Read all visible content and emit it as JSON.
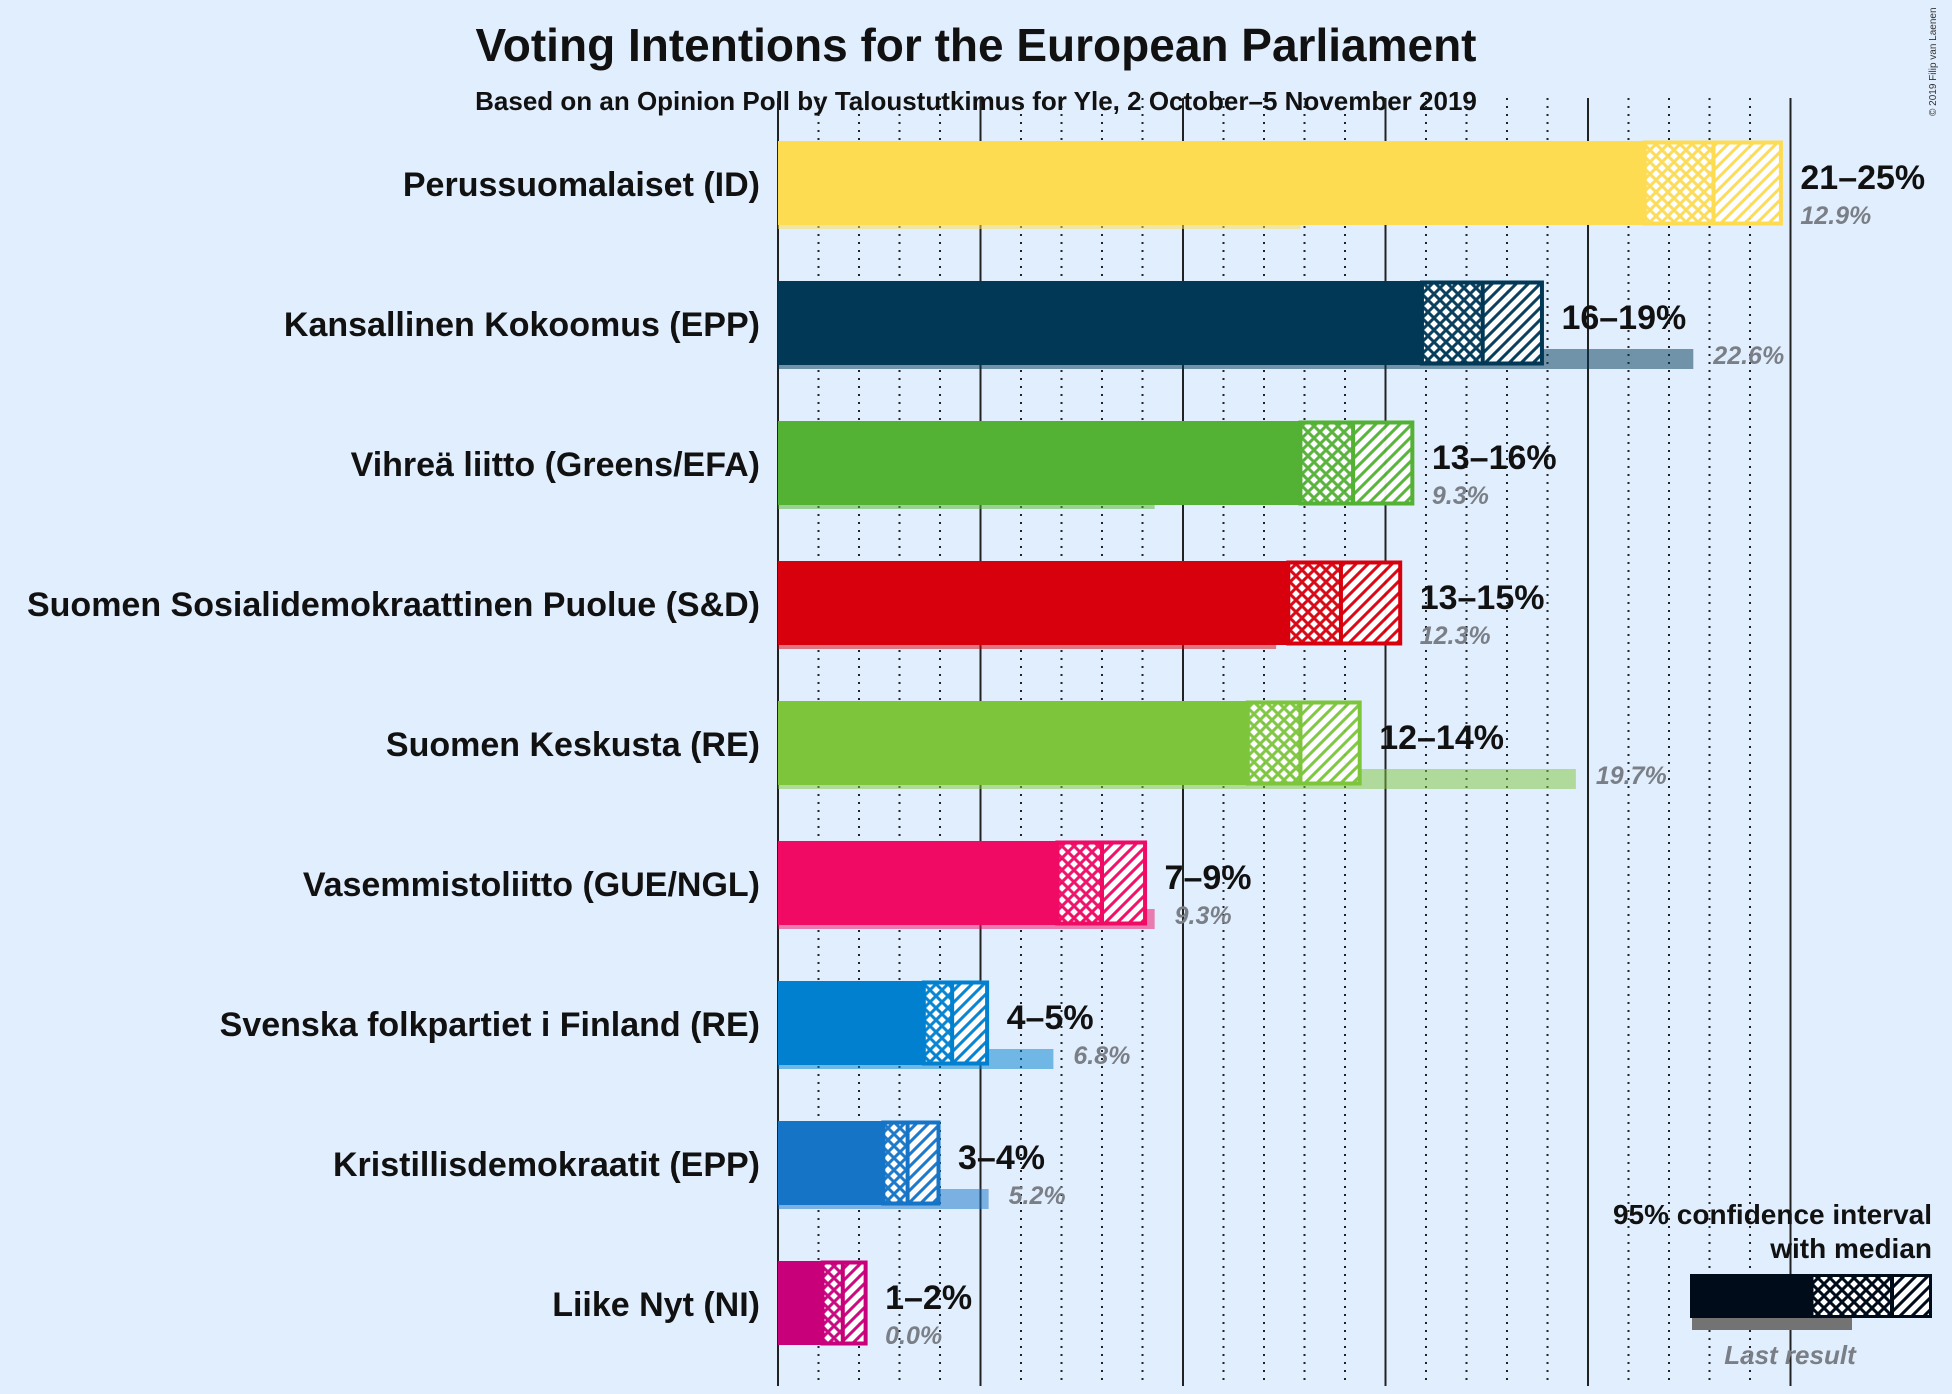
{
  "title": "Voting Intentions for the European Parliament",
  "subtitle": "Based on an Opinion Poll by Taloustutkimus for Yle, 2 October–5 November 2019",
  "copyright": "© 2019 Filip van Laenen",
  "chart_data": {
    "type": "bar",
    "orientation": "horizontal",
    "xlim": [
      0,
      25
    ],
    "unit": "%",
    "categories": [
      "Perussuomalaiset (ID)",
      "Kansallinen Kokoomus (EPP)",
      "Vihreä liitto (Greens/EFA)",
      "Suomen Sosialidemokraattinen Puolue (S&D)",
      "Suomen Keskusta (RE)",
      "Vasemmistoliitto (GUE/NGL)",
      "Svenska folkpartiet i Finland (RE)",
      "Kristillisdemokraatit (EPP)",
      "Liike Nyt (NI)"
    ],
    "parties": [
      {
        "name": "Perussuomalaiset (ID)",
        "color": "#fddc52",
        "ci_low": 21.4,
        "median": 23.1,
        "ci_high": 24.8,
        "range_label": "21–25%",
        "last_result": 12.9,
        "last_label": "12.9%"
      },
      {
        "name": "Kansallinen Kokoomus (EPP)",
        "color": "#003856",
        "ci_low": 15.9,
        "median": 17.4,
        "ci_high": 18.9,
        "range_label": "16–19%",
        "last_result": 22.6,
        "last_label": "22.6%"
      },
      {
        "name": "Vihreä liitto (Greens/EFA)",
        "color": "#53b134",
        "ci_low": 12.9,
        "median": 14.2,
        "ci_high": 15.7,
        "range_label": "13–16%",
        "last_result": 9.3,
        "last_label": "9.3%"
      },
      {
        "name": "Suomen Sosialidemokraattinen Puolue (S&D)",
        "color": "#d8000c",
        "ci_low": 12.6,
        "median": 13.9,
        "ci_high": 15.4,
        "range_label": "13–15%",
        "last_result": 12.3,
        "last_label": "12.3%"
      },
      {
        "name": "Suomen Keskusta (RE)",
        "color": "#7dc63c",
        "ci_low": 11.6,
        "median": 12.9,
        "ci_high": 14.4,
        "range_label": "12–14%",
        "last_result": 19.7,
        "last_label": "19.7%"
      },
      {
        "name": "Vasemmistoliitto (GUE/NGL)",
        "color": "#f00a64",
        "ci_low": 6.9,
        "median": 8.0,
        "ci_high": 9.1,
        "range_label": "7–9%",
        "last_result": 9.3,
        "last_label": "9.3%"
      },
      {
        "name": "Svenska folkpartiet i Finland (RE)",
        "color": "#0080cf",
        "ci_low": 3.6,
        "median": 4.3,
        "ci_high": 5.2,
        "range_label": "4–5%",
        "last_result": 6.8,
        "last_label": "6.8%"
      },
      {
        "name": "Kristillisdemokraatit (EPP)",
        "color": "#1674c7",
        "ci_low": 2.6,
        "median": 3.2,
        "ci_high": 4.0,
        "range_label": "3–4%",
        "last_result": 5.2,
        "last_label": "5.2%"
      },
      {
        "name": "Liike Nyt (NI)",
        "color": "#c8007a",
        "ci_low": 1.1,
        "median": 1.6,
        "ci_high": 2.2,
        "range_label": "1–2%",
        "last_result": 0.0,
        "last_label": "0.0%"
      }
    ],
    "legend": {
      "title_line1": "95% confidence interval",
      "title_line2": "with median",
      "last_result_label": "Last result",
      "color": "#000c1a",
      "last_color": "#737373",
      "placement": "bottom-right"
    },
    "grid": true
  }
}
